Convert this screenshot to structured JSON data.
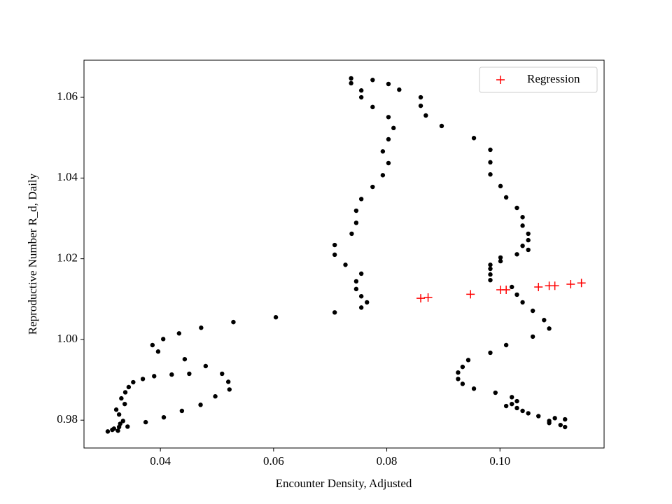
{
  "chart_data": {
    "type": "scatter",
    "xlabel": "Encounter Density, Adjusted",
    "ylabel": "Reproductive Number R_d, Daily",
    "xlim": [
      0.0265,
      0.1184
    ],
    "ylim": [
      0.9731,
      1.0692
    ],
    "xticks": [
      0.04,
      0.06,
      0.08,
      {
        "value": 0.1,
        "label": "0.10"
      }
    ],
    "yticks": [
      0.98,
      {
        "value": 1,
        "label": "1.00"
      },
      1.02,
      1.04,
      1.06
    ],
    "legend": "upper right",
    "series": [
      {
        "color": "#000000",
        "marker": "dot",
        "x": [
          0.0307,
          0.0315,
          0.0318,
          0.0325,
          0.0327,
          0.0329,
          0.0334,
          0.0342,
          0.0327,
          0.0322,
          0.0337,
          0.0331,
          0.0338,
          0.0344,
          0.0352,
          0.0369,
          0.0389,
          0.042,
          0.0451,
          0.048,
          0.0443,
          0.0396,
          0.0386,
          0.0405,
          0.0433,
          0.0472,
          0.0529,
          0.0604,
          0.0708,
          0.0755,
          0.0765,
          0.0755,
          0.0746,
          0.0746,
          0.0755,
          0.0727,
          0.0708,
          0.0708,
          0.0738,
          0.0746,
          0.0746,
          0.0755,
          0.0775,
          0.0793,
          0.0803,
          0.0793,
          0.0803,
          0.0812,
          0.0803,
          0.0775,
          0.0755,
          0.0755,
          0.0737,
          0.0737,
          0.0775,
          0.0803,
          0.0822,
          0.086,
          0.086,
          0.0869,
          0.0897,
          0.0954,
          0.0983,
          0.0983,
          0.0983,
          0.1001,
          0.1011,
          0.103,
          0.104,
          0.104,
          0.105,
          0.105,
          0.104,
          0.105,
          0.103,
          0.1001,
          0.1001,
          0.0983,
          0.0983,
          0.0983,
          0.0983,
          0.1021,
          0.103,
          0.104,
          0.1058,
          0.1078,
          0.1087,
          0.1058,
          0.1011,
          0.0983,
          0.0944,
          0.0934,
          0.0926,
          0.0926,
          0.0934,
          0.0954,
          0.0992,
          0.1021,
          0.103,
          0.1021,
          0.1011,
          0.103,
          0.104,
          0.105,
          0.1068,
          0.1097,
          0.1115,
          0.1087,
          0.1087,
          0.1107,
          0.1115,
          0.0374,
          0.0406,
          0.0438,
          0.0471,
          0.0497,
          0.0522,
          0.052,
          0.0509
        ],
        "values": [
          0.9772,
          0.9776,
          0.9779,
          0.9774,
          0.9783,
          0.9791,
          0.9798,
          0.9784,
          0.9814,
          0.9826,
          0.984,
          0.9854,
          0.9869,
          0.9882,
          0.9894,
          0.9902,
          0.9909,
          0.9913,
          0.9915,
          0.9934,
          0.9951,
          0.997,
          0.9986,
          1.0001,
          1.0015,
          1.0029,
          1.0043,
          1.0055,
          1.0067,
          1.0079,
          1.0092,
          1.0107,
          1.0125,
          1.0144,
          1.0163,
          1.0185,
          1.021,
          1.0234,
          1.0262,
          1.0289,
          1.0319,
          1.0348,
          1.0378,
          1.0407,
          1.0437,
          1.0466,
          1.0496,
          1.0524,
          1.0551,
          1.0576,
          1.06,
          1.0617,
          1.0635,
          1.0647,
          1.0643,
          1.0633,
          1.0619,
          1.06,
          1.0579,
          1.0555,
          1.0529,
          1.0499,
          1.047,
          1.0439,
          1.0409,
          1.038,
          1.0352,
          1.0326,
          1.0303,
          1.0282,
          1.0262,
          1.0246,
          1.0232,
          1.0222,
          1.0211,
          1.0203,
          1.0194,
          1.0185,
          1.0175,
          1.0161,
          1.0147,
          1.013,
          1.0111,
          1.0092,
          1.0071,
          1.0048,
          1.0027,
          1.0007,
          0.9986,
          0.9967,
          0.9949,
          0.9932,
          0.9918,
          0.9902,
          0.989,
          0.9878,
          0.9868,
          0.9857,
          0.9847,
          0.984,
          0.9835,
          0.983,
          0.9823,
          0.9817,
          0.981,
          0.9805,
          0.9802,
          0.9798,
          0.9793,
          0.9788,
          0.9783,
          0.9795,
          0.9807,
          0.9823,
          0.9838,
          0.9859,
          0.9876,
          0.9895,
          0.9915
        ]
      },
      {
        "name": "Regression",
        "color": "#ff0000",
        "marker": "plus",
        "x": [
          0.086,
          0.0873,
          0.0948,
          0.1001,
          0.1011,
          0.1068,
          0.1087,
          0.1097,
          0.1125,
          0.1144
        ],
        "values": [
          1.0102,
          1.0104,
          1.0112,
          1.0123,
          1.0123,
          1.013,
          1.0133,
          1.0133,
          1.0137,
          1.014
        ]
      }
    ]
  }
}
